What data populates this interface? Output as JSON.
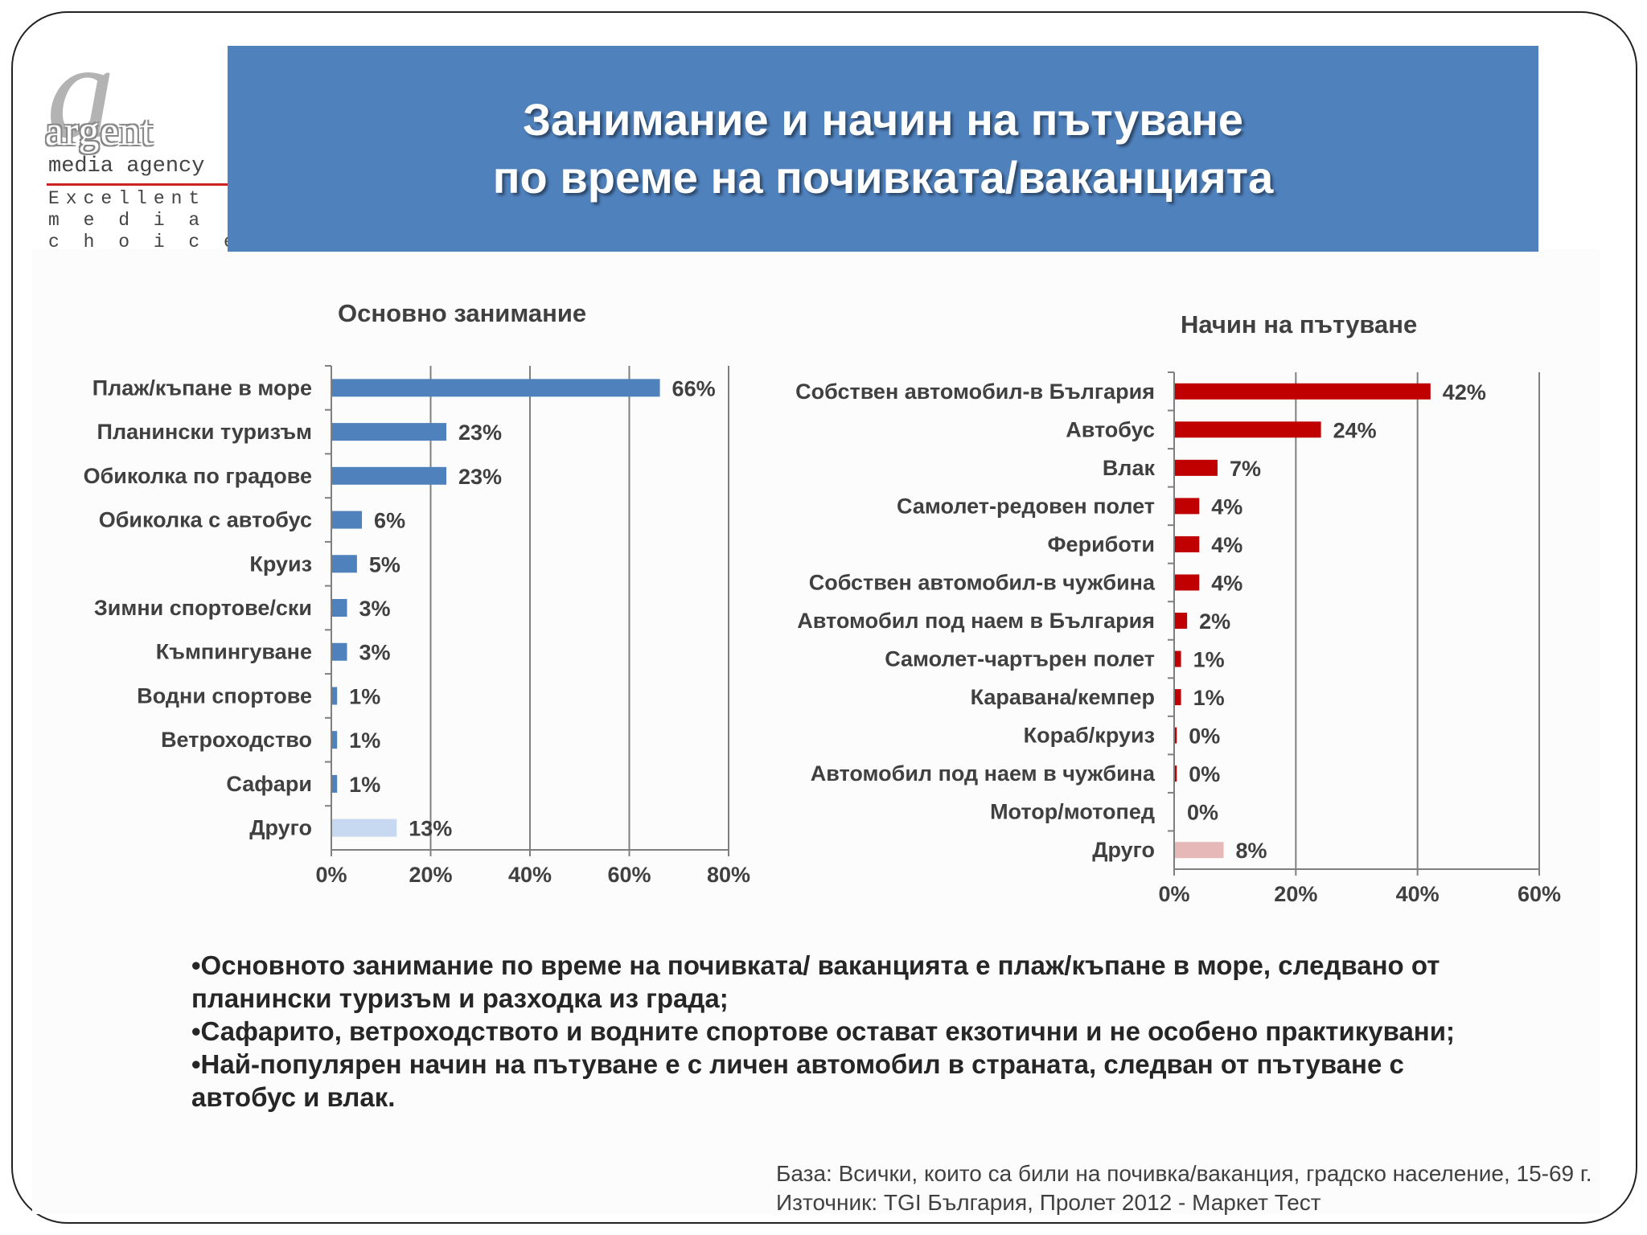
{
  "logo": {
    "mark": "a",
    "word": "argent",
    "sub": "media agency",
    "tagline": [
      "Excellent",
      "m e d i a",
      "c h o i c e"
    ]
  },
  "banner": {
    "title_line1": "Занимание и начин на пътуване",
    "title_line2": "по време на почивката/ваканцията"
  },
  "chart_data": [
    {
      "type": "bar",
      "orientation": "horizontal",
      "title": "Основно занимание",
      "categories": [
        "Плаж/къпане в море",
        "Планински туризъм",
        "Обиколка по градове",
        "Обиколка с автобус",
        "Круиз",
        "Зимни спортове/ски",
        "Къмпингуване",
        "Водни спортове",
        "Ветроходство",
        "Сафари",
        "Друго"
      ],
      "values": [
        66,
        23,
        23,
        6,
        5,
        3,
        3,
        1,
        1,
        1,
        13
      ],
      "value_labels": [
        "66%",
        "23%",
        "23%",
        "6%",
        "5%",
        "3%",
        "3%",
        "1%",
        "1%",
        "1%",
        "13%"
      ],
      "xlim": [
        0,
        80
      ],
      "xticks": [
        "0%",
        "20%",
        "40%",
        "60%",
        "80%"
      ],
      "grid": true,
      "colors": {
        "main": "#4f81bd",
        "other": "#c6d9f1"
      }
    },
    {
      "type": "bar",
      "orientation": "horizontal",
      "title": "Начин на пътуване",
      "categories": [
        "Собствен автомобил-в България",
        "Автобус",
        "Влак",
        "Самолет-редовен полет",
        "Фериботи",
        "Собствен автомобил-в чужбина",
        "Автомобил под наем в България",
        "Самолет-чартърен полет",
        "Каравана/кемпер",
        "Кораб/круиз",
        "Автомобил под наем в чужбина",
        "Мотор/мотопед",
        "Друго"
      ],
      "values": [
        42,
        24,
        7,
        4,
        4,
        4,
        2,
        1,
        1,
        0.3,
        0.3,
        0,
        8
      ],
      "value_labels": [
        "42%",
        "24%",
        "7%",
        "4%",
        "4%",
        "4%",
        "2%",
        "1%",
        "1%",
        "0%",
        "0%",
        "0%",
        "8%"
      ],
      "xlim": [
        0,
        60
      ],
      "xticks": [
        "0%",
        "20%",
        "40%",
        "60%"
      ],
      "grid": true,
      "colors": {
        "main": "#c00000",
        "other": "#e6b9b8"
      }
    }
  ],
  "bullets": [
    "•Основното занимание по време на почивката/ ваканцията е плаж/къпане в море, следвано от планински туризъм и разходка из града;",
    "•Сафарито, ветроходството и водните спортове остават екзотични и не особено практикувани;",
    "•Най-популярен начин на пътуване е с личен автомобил в страната, следван от пътуване с автобус и влак."
  ],
  "footnote": {
    "base": "База: Всички, които са били на почивка/ваканция, градско население, 15-69 г.",
    "source": "Източник: TGI България, Пролет 2012 - Маркет Тест"
  }
}
